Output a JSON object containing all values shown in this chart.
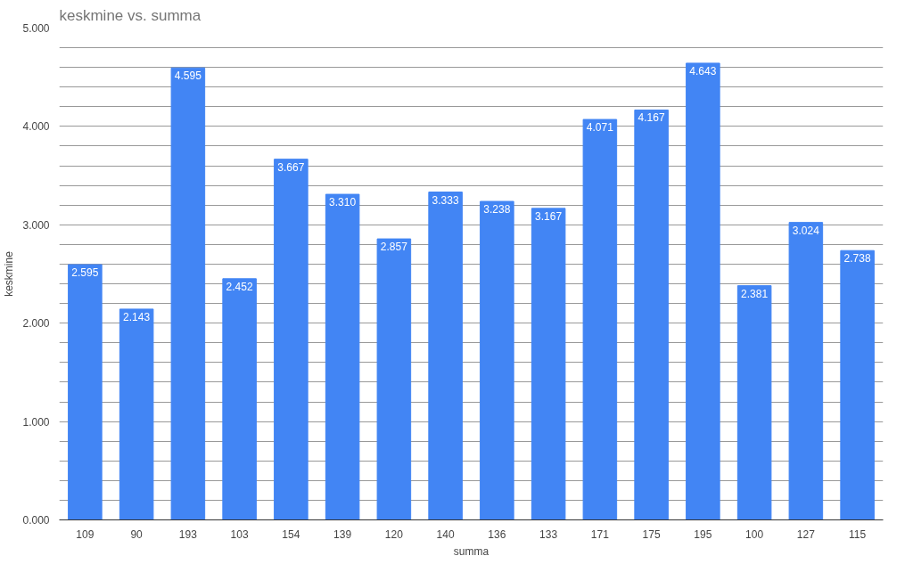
{
  "chart_data": {
    "type": "bar",
    "title": "keskmine vs. summa",
    "xlabel": "summa",
    "ylabel": "keskmine",
    "categories": [
      "109",
      "90",
      "193",
      "103",
      "154",
      "139",
      "120",
      "140",
      "136",
      "133",
      "171",
      "175",
      "195",
      "100",
      "127",
      "115"
    ],
    "values": [
      2.595,
      2.143,
      4.595,
      2.452,
      3.667,
      3.31,
      2.857,
      3.333,
      3.238,
      3.167,
      4.071,
      4.167,
      4.643,
      2.381,
      3.024,
      2.738
    ],
    "value_labels": [
      "2.595",
      "2.143",
      "4.595",
      "2.452",
      "3.667",
      "3.310",
      "2.857",
      "3.333",
      "3.238",
      "3.167",
      "4.071",
      "4.167",
      "4.643",
      "2.381",
      "3.024",
      "2.738"
    ],
    "color": "#4285f4",
    "ylim": [
      0,
      5
    ],
    "yticks": [
      {
        "value": 0,
        "label": "0.000"
      },
      {
        "value": 0.2,
        "label": null
      },
      {
        "value": 0.4,
        "label": null
      },
      {
        "value": 0.6,
        "label": null
      },
      {
        "value": 0.8,
        "label": null
      },
      {
        "value": 1,
        "label": "1.000"
      },
      {
        "value": 1.2,
        "label": null
      },
      {
        "value": 1.4,
        "label": null
      },
      {
        "value": 1.6,
        "label": null
      },
      {
        "value": 1.8,
        "label": null
      },
      {
        "value": 2,
        "label": "2.000"
      },
      {
        "value": 2.2,
        "label": null
      },
      {
        "value": 2.4,
        "label": null
      },
      {
        "value": 2.6,
        "label": null
      },
      {
        "value": 2.8,
        "label": null
      },
      {
        "value": 3,
        "label": "3.000"
      },
      {
        "value": 3.2,
        "label": null
      },
      {
        "value": 3.4,
        "label": null
      },
      {
        "value": 3.6,
        "label": null
      },
      {
        "value": 3.8,
        "label": null
      },
      {
        "value": 4,
        "label": "4.000"
      },
      {
        "value": 4.2,
        "label": null
      },
      {
        "value": 4.4,
        "label": null
      },
      {
        "value": 4.6,
        "label": null
      },
      {
        "value": 4.8,
        "label": null
      },
      {
        "value": 5,
        "label": "5.000"
      }
    ],
    "grid": "y"
  }
}
